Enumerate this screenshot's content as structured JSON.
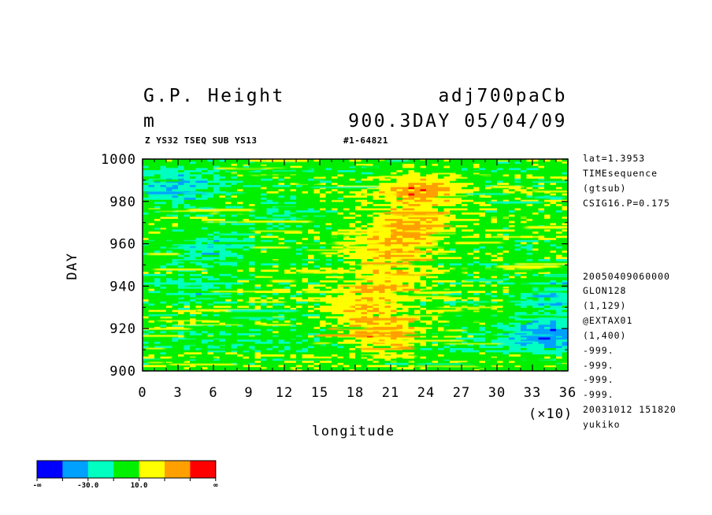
{
  "header": {
    "variable": "G.P. Height",
    "unit": "m",
    "experiment": "adj700paCb",
    "time_info": "900.3DAY 05/04/09",
    "subtitle_left": "Z YS32 TSEQ SUB YS13",
    "subtitle_right": "#1-64821"
  },
  "sidebar": {
    "info_top": [
      "lat=1.3953",
      "TIMEsequence",
      "(gtsub)",
      "CSIG16.P=0.175"
    ],
    "info_bottom": [
      "20050409060000",
      "GLON128",
      "(1,129)",
      "@EXTAX01",
      "(1,400)",
      "-999.",
      "-999.",
      "-999.",
      "-999.",
      "20031012 151820",
      "yukiko"
    ]
  },
  "colorbar": {
    "colors": [
      "#0000ff",
      "#00a0ff",
      "#00ffc0",
      "#00f000",
      "#ffff00",
      "#ffa000",
      "#ff0000"
    ],
    "labels": [
      {
        "text": "-∞",
        "index": 0
      },
      {
        "text": "-30.0",
        "index": 2
      },
      {
        "text": "10.0",
        "index": 4
      },
      {
        "text": "∞",
        "index": 7
      }
    ]
  },
  "chart_data": {
    "type": "heatmap",
    "xlabel": "longitude",
    "ylabel": "DAY",
    "x_multiplier_label": "(×10)",
    "xlim": [
      0,
      36
    ],
    "ylim": [
      900,
      1000
    ],
    "x_ticks": [
      0,
      3,
      6,
      9,
      12,
      15,
      18,
      21,
      24,
      27,
      30,
      33,
      36
    ],
    "y_ticks": [
      900,
      920,
      940,
      960,
      980,
      1000
    ],
    "color_levels": [
      -50,
      -30,
      -10,
      10,
      30,
      50
    ],
    "features": [
      {
        "x": 20.5,
        "y": 917,
        "value": 40
      },
      {
        "x": 18.5,
        "y": 930,
        "value": 25
      },
      {
        "x": 20.5,
        "y": 942,
        "value": 28
      },
      {
        "x": 21.0,
        "y": 958,
        "value": 32
      },
      {
        "x": 23.0,
        "y": 970,
        "value": 30
      },
      {
        "x": 23.5,
        "y": 986,
        "value": 38
      },
      {
        "x": 34.0,
        "y": 918,
        "value": -40
      },
      {
        "x": 35.5,
        "y": 935,
        "value": -25
      },
      {
        "x": 3.0,
        "y": 987,
        "value": -32
      },
      {
        "x": 6.0,
        "y": 958,
        "value": -22
      },
      {
        "x": 4.0,
        "y": 940,
        "value": -15
      },
      {
        "x": 12.0,
        "y": 975,
        "value": -12
      }
    ]
  }
}
